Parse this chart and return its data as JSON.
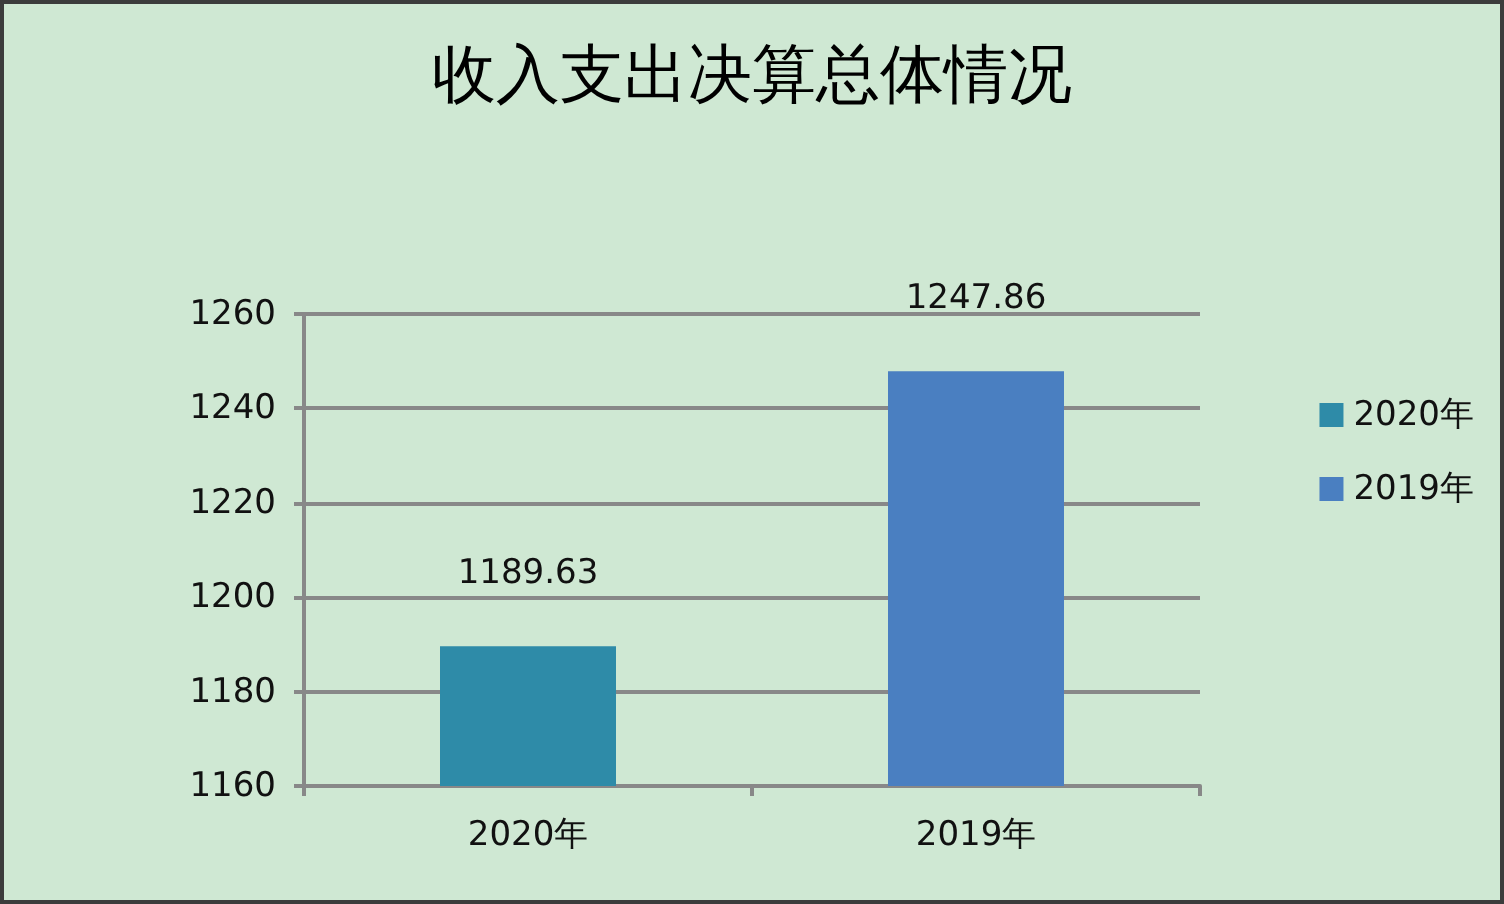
{
  "chart_data": {
    "type": "bar",
    "title": "收入支出决算总体情况",
    "categories": [
      "2020年",
      "2019年"
    ],
    "series": [
      {
        "name": "2020年",
        "color": "#2e8ba8",
        "values": [
          1189.63,
          null
        ]
      },
      {
        "name": "2019年",
        "color": "#4a7fc1",
        "values": [
          null,
          1247.86
        ]
      }
    ],
    "ylim": [
      1160,
      1260
    ],
    "yticks": [
      1160,
      1180,
      1200,
      1220,
      1240,
      1260
    ],
    "grid": "y",
    "legend": "right",
    "data_labels": true
  }
}
